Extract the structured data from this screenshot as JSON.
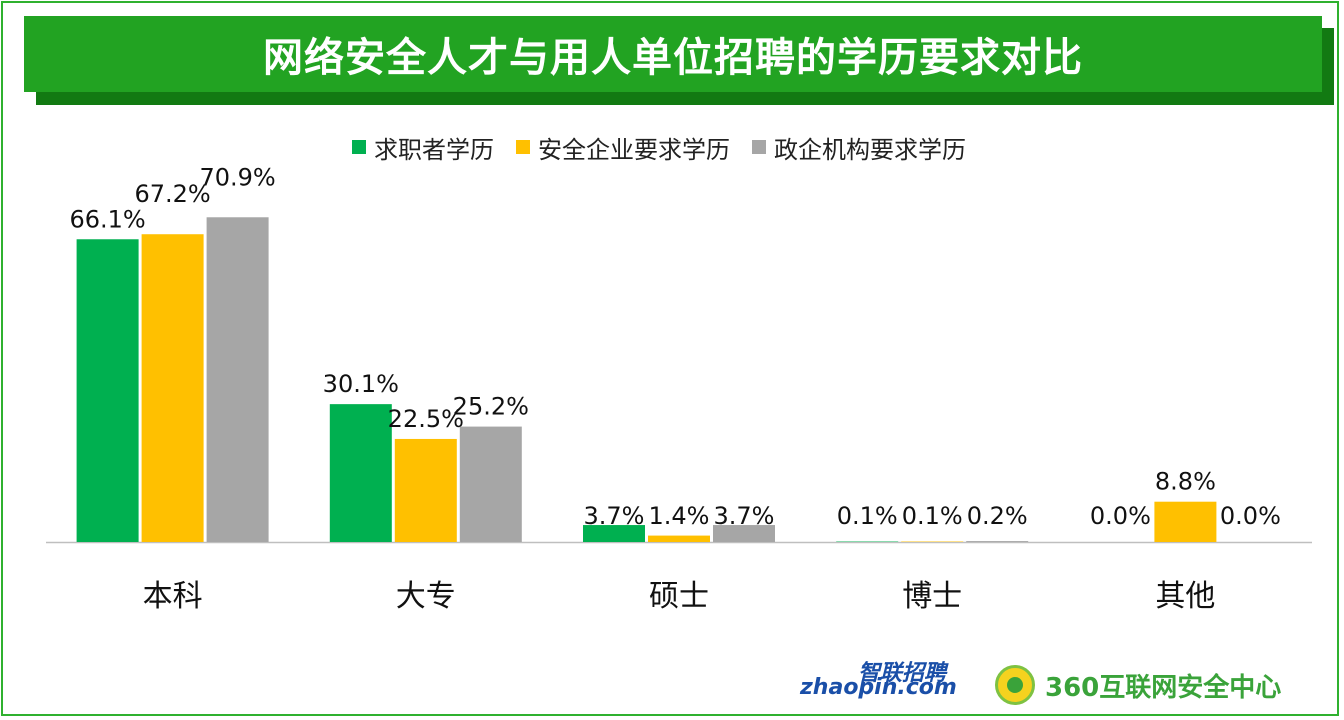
{
  "title": "网络安全人才与用人单位招聘的学历要求对比",
  "colors": {
    "frame": "#2fb12f",
    "title_bg": "#22a322",
    "title_shadow": "#127a12"
  },
  "legend": [
    {
      "label": "求职者学历",
      "color": "#00b050"
    },
    {
      "label": "安全企业要求学历",
      "color": "#ffc000"
    },
    {
      "label": "政企机构要求学历",
      "color": "#a6a6a6"
    }
  ],
  "chart_data": {
    "type": "bar",
    "categories": [
      "本科",
      "大专",
      "硕士",
      "博士",
      "其他"
    ],
    "series": [
      {
        "name": "求职者学历",
        "values": [
          66.1,
          30.1,
          3.7,
          0.1,
          0.0
        ],
        "labels": [
          "66.1%",
          "30.1%",
          "3.7%",
          "0.1%",
          "0.0%"
        ],
        "color": "#00b050"
      },
      {
        "name": "安全企业要求学历",
        "values": [
          67.2,
          22.5,
          1.4,
          0.1,
          8.8
        ],
        "labels": [
          "67.2%",
          "22.5%",
          "1.4%",
          "0.1%",
          "8.8%"
        ],
        "color": "#ffc000"
      },
      {
        "name": "政企机构要求学历",
        "values": [
          70.9,
          25.2,
          3.7,
          0.2,
          0.0
        ],
        "labels": [
          "70.9%",
          "25.2%",
          "3.7%",
          "0.2%",
          "0.0%"
        ],
        "color": "#a6a6a6"
      }
    ],
    "ylim": [
      0,
      75
    ],
    "grid": false,
    "legend_position": "top"
  },
  "logos": {
    "zhaopin_cn": "智联招聘",
    "zhaopin_en": "zhaopin.com",
    "org_text": "360互联网安全中心"
  }
}
